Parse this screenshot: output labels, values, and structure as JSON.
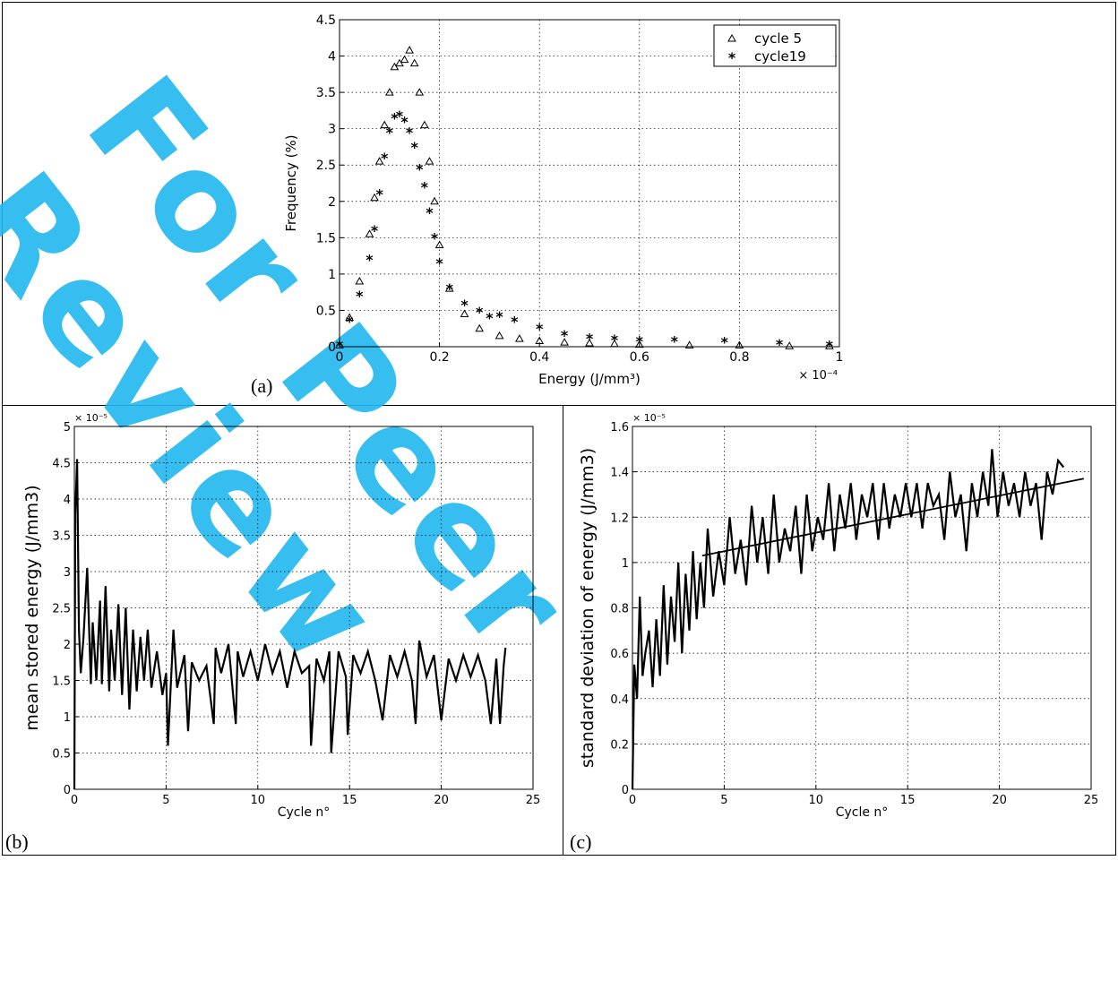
{
  "panels": {
    "a": {
      "label": "(a)"
    },
    "b": {
      "label": "(b)"
    },
    "c": {
      "label": "(c)"
    }
  },
  "watermark": {
    "text": "For Peer Review",
    "color": "#22b8f0"
  },
  "chart_data": [
    {
      "id": "a",
      "type": "scatter",
      "xlabel": "Energy (J/mm³)",
      "ylabel": "Frequency (%)",
      "xlim": [
        0,
        1
      ],
      "ylim": [
        0,
        4.5
      ],
      "xticks": [
        "0",
        "0.2",
        "0.4",
        "0.6",
        "0.8",
        "1"
      ],
      "yticks": [
        "0",
        "0.5",
        "1",
        "1.5",
        "2",
        "2.5",
        "3",
        "3.5",
        "4",
        "4.5"
      ],
      "xmultiplier": "× 10⁻⁴",
      "grid": true,
      "legend_position": "top-right",
      "series": [
        {
          "name": "cycle 5",
          "marker": "triangle",
          "x": [
            0.0,
            0.02,
            0.04,
            0.06,
            0.07,
            0.08,
            0.09,
            0.1,
            0.11,
            0.12,
            0.13,
            0.14,
            0.15,
            0.16,
            0.17,
            0.18,
            0.19,
            0.2,
            0.22,
            0.25,
            0.28,
            0.32,
            0.36,
            0.4,
            0.45,
            0.5,
            0.55,
            0.6,
            0.7,
            0.8,
            0.9,
            0.98
          ],
          "y": [
            0.02,
            0.4,
            0.9,
            1.55,
            2.05,
            2.55,
            3.05,
            3.5,
            3.85,
            3.9,
            3.95,
            4.08,
            3.9,
            3.5,
            3.05,
            2.55,
            2.0,
            1.4,
            0.8,
            0.45,
            0.25,
            0.15,
            0.11,
            0.08,
            0.06,
            0.05,
            0.04,
            0.03,
            0.02,
            0.02,
            0.01,
            0.01
          ]
        },
        {
          "name": "cycle19",
          "marker": "asterisk",
          "x": [
            0.0,
            0.02,
            0.04,
            0.06,
            0.07,
            0.08,
            0.09,
            0.1,
            0.11,
            0.12,
            0.13,
            0.14,
            0.15,
            0.16,
            0.17,
            0.18,
            0.19,
            0.2,
            0.22,
            0.25,
            0.28,
            0.3,
            0.32,
            0.35,
            0.4,
            0.45,
            0.5,
            0.55,
            0.6,
            0.67,
            0.77,
            0.88,
            0.98
          ],
          "y": [
            0.02,
            0.35,
            0.7,
            1.2,
            1.6,
            2.1,
            2.6,
            2.95,
            3.15,
            3.18,
            3.1,
            2.95,
            2.75,
            2.45,
            2.2,
            1.85,
            1.5,
            1.15,
            0.8,
            0.58,
            0.48,
            0.4,
            0.42,
            0.35,
            0.25,
            0.16,
            0.12,
            0.1,
            0.08,
            0.08,
            0.07,
            0.04,
            0.02
          ]
        }
      ]
    },
    {
      "id": "b",
      "type": "line",
      "xlabel": "Cycle n°",
      "ylabel": "mean stored energy (J/mm3)",
      "xlim": [
        0,
        25
      ],
      "ylim": [
        0,
        5
      ],
      "xticks": [
        "0",
        "5",
        "10",
        "15",
        "20",
        "25"
      ],
      "yticks": [
        "0",
        "0.5",
        "1",
        "1.5",
        "2",
        "2.5",
        "3",
        "3.5",
        "4",
        "4.5",
        "5"
      ],
      "ymultiplier": "× 10⁻⁵",
      "grid": true,
      "series": [
        {
          "name": "",
          "x": [
            0,
            0.05,
            0.15,
            0.25,
            0.35,
            0.5,
            0.7,
            0.9,
            1.0,
            1.2,
            1.4,
            1.5,
            1.7,
            1.9,
            2.0,
            2.2,
            2.4,
            2.6,
            2.8,
            3.0,
            3.2,
            3.4,
            3.6,
            3.8,
            4.0,
            4.2,
            4.5,
            4.8,
            5.0,
            5.1,
            5.4,
            5.6,
            6.0,
            6.2,
            6.4,
            6.8,
            7.2,
            7.6,
            7.7,
            8.0,
            8.4,
            8.8,
            8.9,
            9.2,
            9.6,
            10.0,
            10.4,
            10.8,
            11.2,
            11.6,
            12.0,
            12.4,
            12.8,
            12.9,
            13.2,
            13.6,
            13.9,
            14.0,
            14.4,
            14.8,
            14.9,
            15.2,
            15.6,
            16.0,
            16.4,
            16.8,
            17.2,
            17.6,
            18.0,
            18.4,
            18.6,
            18.8,
            19.2,
            19.6,
            20.0,
            20.4,
            20.8,
            21.2,
            21.6,
            22.0,
            22.4,
            22.7,
            23.0,
            23.2,
            23.4,
            23.5
          ],
          "y": [
            0.0,
            3.8,
            4.55,
            2.2,
            1.6,
            2.1,
            3.05,
            1.45,
            2.3,
            1.5,
            2.6,
            1.45,
            2.8,
            1.35,
            2.2,
            1.5,
            2.55,
            1.3,
            2.5,
            1.1,
            2.2,
            1.35,
            2.1,
            1.5,
            2.2,
            1.4,
            1.9,
            1.3,
            1.6,
            0.6,
            2.2,
            1.4,
            1.85,
            0.8,
            1.75,
            1.5,
            1.7,
            0.9,
            1.95,
            1.6,
            2.0,
            0.9,
            1.9,
            1.55,
            1.9,
            1.5,
            2.0,
            1.6,
            1.9,
            1.4,
            1.9,
            1.6,
            1.7,
            0.6,
            1.8,
            1.5,
            1.9,
            0.5,
            1.9,
            1.55,
            0.75,
            1.85,
            1.6,
            1.9,
            1.5,
            0.95,
            1.85,
            1.55,
            1.9,
            1.5,
            0.9,
            2.05,
            1.55,
            1.85,
            0.95,
            1.8,
            1.5,
            1.85,
            1.55,
            1.85,
            1.5,
            0.9,
            1.8,
            0.9,
            1.7,
            1.95
          ]
        }
      ]
    },
    {
      "id": "c",
      "type": "line",
      "xlabel": "Cycle n°",
      "ylabel": "standard deviation of energy (J/mm3)",
      "xlim": [
        0,
        25
      ],
      "ylim": [
        0,
        1.6
      ],
      "xticks": [
        "0",
        "5",
        "10",
        "15",
        "20",
        "25"
      ],
      "yticks": [
        "0",
        "0.2",
        "0.4",
        "0.6",
        "0.8",
        "1",
        "1.2",
        "1.4",
        "1.6"
      ],
      "ymultiplier": "× 10⁻⁵",
      "grid": true,
      "series": [
        {
          "name": "",
          "x": [
            0,
            0.1,
            0.25,
            0.4,
            0.55,
            0.7,
            0.9,
            1.1,
            1.3,
            1.5,
            1.7,
            1.9,
            2.1,
            2.3,
            2.5,
            2.7,
            2.9,
            3.1,
            3.3,
            3.5,
            3.7,
            3.9,
            4.1,
            4.4,
            4.7,
            5.0,
            5.3,
            5.6,
            5.9,
            6.2,
            6.5,
            6.8,
            7.1,
            7.4,
            7.7,
            8.0,
            8.3,
            8.6,
            8.9,
            9.2,
            9.5,
            9.8,
            10.1,
            10.4,
            10.7,
            11.0,
            11.3,
            11.6,
            11.9,
            12.2,
            12.5,
            12.8,
            13.1,
            13.4,
            13.7,
            14.0,
            14.3,
            14.6,
            14.9,
            15.2,
            15.5,
            15.8,
            16.1,
            16.4,
            16.7,
            17.0,
            17.3,
            17.6,
            17.9,
            18.2,
            18.5,
            18.8,
            19.1,
            19.4,
            19.6,
            19.9,
            20.2,
            20.5,
            20.8,
            21.1,
            21.4,
            21.7,
            22.0,
            22.3,
            22.6,
            22.9,
            23.2,
            23.5
          ],
          "y": [
            0.0,
            0.55,
            0.4,
            0.85,
            0.5,
            0.6,
            0.7,
            0.45,
            0.75,
            0.5,
            0.9,
            0.55,
            0.85,
            0.65,
            1.0,
            0.6,
            0.95,
            0.7,
            1.05,
            0.75,
            1.0,
            0.8,
            1.15,
            0.85,
            1.05,
            0.9,
            1.2,
            0.95,
            1.1,
            0.9,
            1.25,
            1.0,
            1.2,
            0.95,
            1.3,
            1.0,
            1.15,
            1.05,
            1.25,
            0.95,
            1.3,
            1.05,
            1.2,
            1.1,
            1.35,
            1.05,
            1.3,
            1.15,
            1.35,
            1.1,
            1.3,
            1.2,
            1.35,
            1.1,
            1.35,
            1.15,
            1.3,
            1.2,
            1.35,
            1.2,
            1.35,
            1.15,
            1.35,
            1.25,
            1.3,
            1.1,
            1.4,
            1.2,
            1.3,
            1.05,
            1.35,
            1.2,
            1.4,
            1.25,
            1.5,
            1.2,
            1.4,
            1.25,
            1.35,
            1.2,
            1.4,
            1.25,
            1.35,
            1.1,
            1.4,
            1.3,
            1.45,
            1.42
          ]
        },
        {
          "name": "",
          "x": [
            3.8,
            24.6
          ],
          "y": [
            1.03,
            1.37
          ]
        }
      ]
    }
  ]
}
